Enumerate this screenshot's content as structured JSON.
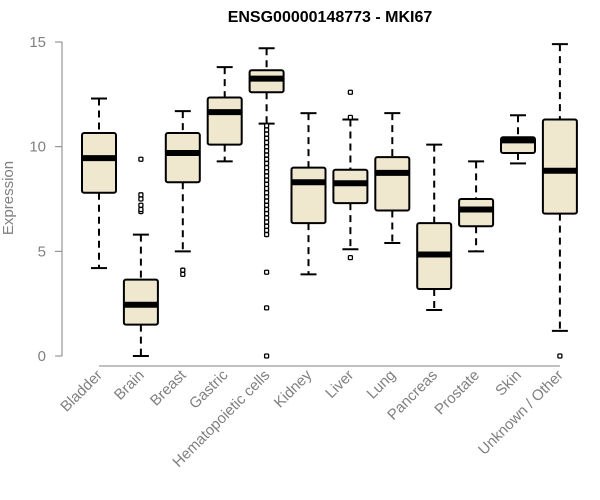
{
  "chart_data": {
    "type": "box",
    "title": "ENSG00000148773 - MKI67",
    "xlabel": "",
    "ylabel": "Expression",
    "ylim": [
      0,
      15
    ],
    "yticks": [
      0,
      5,
      10,
      15
    ],
    "box_fill": "#efe8cf",
    "axis_color": "#808080",
    "categories": [
      "Bladder",
      "Brain",
      "Breast",
      "Gastric",
      "Hematopoietic cells",
      "Kidney",
      "Liver",
      "Lung",
      "Pancreas",
      "Prostate",
      "Skin",
      "Unknown / Other"
    ],
    "boxes": [
      {
        "name": "Bladder",
        "whisker_low": 4.2,
        "q1": 7.8,
        "median": 9.45,
        "q3": 10.65,
        "whisker_high": 12.3,
        "outliers": []
      },
      {
        "name": "Brain",
        "whisker_low": 0.0,
        "q1": 1.5,
        "median": 2.45,
        "q3": 3.65,
        "whisker_high": 5.8,
        "outliers": [
          6.9,
          7.0,
          7.2,
          7.5,
          7.7,
          9.4
        ]
      },
      {
        "name": "Breast",
        "whisker_low": 5.0,
        "q1": 8.3,
        "median": 9.7,
        "q3": 10.65,
        "whisker_high": 11.7,
        "outliers": [
          3.9,
          4.1
        ]
      },
      {
        "name": "Gastric",
        "whisker_low": 9.3,
        "q1": 10.1,
        "median": 11.65,
        "q3": 12.35,
        "whisker_high": 13.8,
        "outliers": []
      },
      {
        "name": "Hematopoietic cells",
        "whisker_low": 11.1,
        "q1": 12.6,
        "median": 13.25,
        "q3": 13.65,
        "whisker_high": 14.7,
        "outliers": [
          0.0,
          2.3,
          4.0,
          5.8,
          6.0,
          6.2,
          6.4,
          6.6,
          6.8,
          7.0,
          7.2,
          7.4,
          7.6,
          7.8,
          8.0,
          8.2,
          8.4,
          8.6,
          8.8,
          9.0,
          9.2,
          9.4,
          9.6,
          9.8,
          10.0,
          10.2,
          10.4,
          10.6,
          10.8,
          11.0
        ]
      },
      {
        "name": "Kidney",
        "whisker_low": 3.9,
        "q1": 6.35,
        "median": 8.3,
        "q3": 9.0,
        "whisker_high": 11.6,
        "outliers": []
      },
      {
        "name": "Liver",
        "whisker_low": 5.1,
        "q1": 7.3,
        "median": 8.25,
        "q3": 8.9,
        "whisker_high": 11.3,
        "outliers": [
          4.7,
          11.4,
          12.6
        ]
      },
      {
        "name": "Lung",
        "whisker_low": 5.4,
        "q1": 6.95,
        "median": 8.75,
        "q3": 9.5,
        "whisker_high": 11.6,
        "outliers": []
      },
      {
        "name": "Pancreas",
        "whisker_low": 2.2,
        "q1": 3.2,
        "median": 4.85,
        "q3": 6.35,
        "whisker_high": 10.1,
        "outliers": []
      },
      {
        "name": "Prostate",
        "whisker_low": 5.0,
        "q1": 6.2,
        "median": 7.0,
        "q3": 7.5,
        "whisker_high": 9.3,
        "outliers": []
      },
      {
        "name": "Skin",
        "whisker_low": 9.2,
        "q1": 9.7,
        "median": 10.3,
        "q3": 10.45,
        "whisker_high": 11.5,
        "outliers": []
      },
      {
        "name": "Unknown / Other",
        "whisker_low": 1.2,
        "q1": 6.8,
        "median": 8.85,
        "q3": 11.3,
        "whisker_high": 14.9,
        "outliers": [
          0.0
        ]
      }
    ]
  }
}
